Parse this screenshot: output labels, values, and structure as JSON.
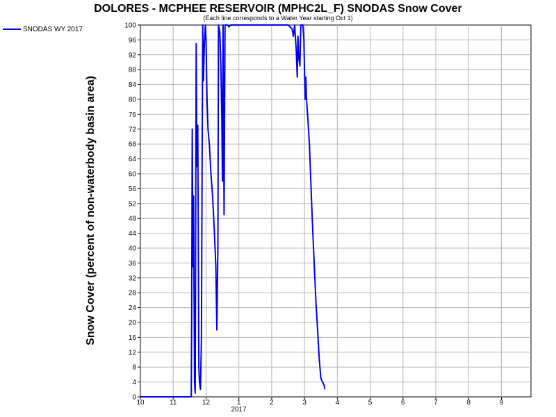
{
  "chart_data": {
    "type": "line",
    "title": "DOLORES - MCPHEE RESERVOIR (MPHC2L_F) SNODAS Snow Cover",
    "subtitle": "(Each line corresponds to a Water Year starting Oct 1)",
    "xlabel": "",
    "ylabel": "Snow Cover (percent of non-waterbody basin area)",
    "xlim": [
      10,
      21.9
    ],
    "ylim": [
      0,
      100
    ],
    "x_ticks": [
      {
        "value": 10,
        "label": "10"
      },
      {
        "value": 11,
        "label": "11"
      },
      {
        "value": 12,
        "label": "12"
      },
      {
        "value": 13,
        "label": "1"
      },
      {
        "value": 14,
        "label": "2"
      },
      {
        "value": 15,
        "label": "3"
      },
      {
        "value": 16,
        "label": "4"
      },
      {
        "value": 17,
        "label": "5"
      },
      {
        "value": 18,
        "label": "6"
      },
      {
        "value": 19,
        "label": "7"
      },
      {
        "value": 20,
        "label": "8"
      },
      {
        "value": 21,
        "label": "9"
      }
    ],
    "year_label": {
      "value": 13,
      "label": "2017"
    },
    "y_ticks": [
      0,
      4,
      8,
      12,
      16,
      20,
      24,
      28,
      32,
      36,
      40,
      44,
      48,
      52,
      56,
      60,
      64,
      68,
      72,
      76,
      80,
      84,
      88,
      92,
      96,
      100
    ],
    "grid": true,
    "legend_position": "top-left",
    "series": [
      {
        "name": "SNODAS WY 2017",
        "color": "#0000ee",
        "points": [
          [
            10.0,
            0
          ],
          [
            11.55,
            0
          ],
          [
            11.56,
            18
          ],
          [
            11.58,
            72
          ],
          [
            11.6,
            35
          ],
          [
            11.62,
            54
          ],
          [
            11.65,
            4
          ],
          [
            11.67,
            1
          ],
          [
            11.7,
            95
          ],
          [
            11.72,
            62
          ],
          [
            11.75,
            73
          ],
          [
            11.78,
            8
          ],
          [
            11.8,
            4
          ],
          [
            11.83,
            2
          ],
          [
            11.86,
            15
          ],
          [
            11.88,
            62
          ],
          [
            11.9,
            100
          ],
          [
            11.92,
            85
          ],
          [
            11.95,
            95
          ],
          [
            11.98,
            100
          ],
          [
            12.0,
            96
          ],
          [
            12.03,
            80
          ],
          [
            12.06,
            72
          ],
          [
            12.1,
            68
          ],
          [
            12.15,
            60
          ],
          [
            12.2,
            54
          ],
          [
            12.25,
            45
          ],
          [
            12.3,
            35
          ],
          [
            12.33,
            18
          ],
          [
            12.36,
            40
          ],
          [
            12.38,
            100
          ],
          [
            12.42,
            98
          ],
          [
            12.45,
            90
          ],
          [
            12.48,
            76
          ],
          [
            12.5,
            58
          ],
          [
            12.52,
            100
          ],
          [
            12.55,
            49
          ],
          [
            12.58,
            100
          ],
          [
            12.6,
            100
          ],
          [
            12.65,
            100
          ],
          [
            12.7,
            99.5
          ],
          [
            12.75,
            100
          ],
          [
            13.0,
            100
          ],
          [
            13.5,
            100
          ],
          [
            14.0,
            100
          ],
          [
            14.5,
            100
          ],
          [
            14.62,
            99
          ],
          [
            14.66,
            97
          ],
          [
            14.7,
            100
          ],
          [
            14.75,
            93
          ],
          [
            14.78,
            86
          ],
          [
            14.8,
            97
          ],
          [
            14.83,
            91
          ],
          [
            14.86,
            89
          ],
          [
            14.89,
            100
          ],
          [
            14.92,
            100
          ],
          [
            14.95,
            100
          ],
          [
            14.98,
            96
          ],
          [
            15.0,
            88
          ],
          [
            15.02,
            80
          ],
          [
            15.04,
            86
          ],
          [
            15.06,
            80
          ],
          [
            15.1,
            75
          ],
          [
            15.15,
            68
          ],
          [
            15.2,
            56
          ],
          [
            15.25,
            45
          ],
          [
            15.3,
            35
          ],
          [
            15.35,
            25
          ],
          [
            15.4,
            18
          ],
          [
            15.45,
            10
          ],
          [
            15.5,
            5
          ],
          [
            15.55,
            4
          ],
          [
            15.6,
            3
          ],
          [
            15.62,
            2
          ]
        ]
      }
    ]
  }
}
